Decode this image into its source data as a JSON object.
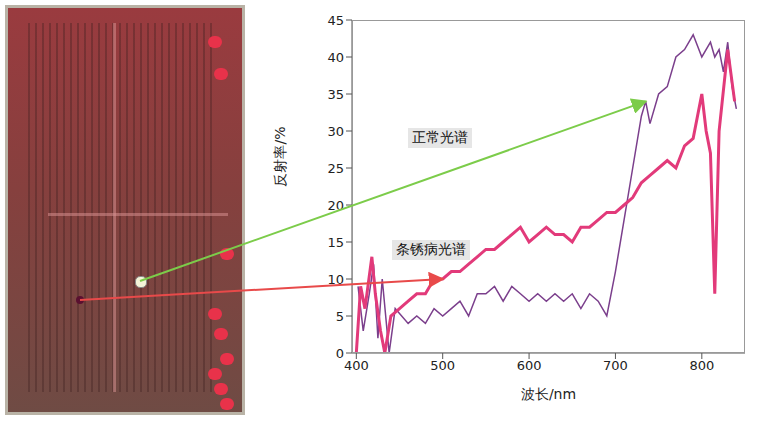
{
  "chart_data": {
    "type": "line",
    "xlabel": "波长/nm",
    "ylabel": "反射率/%",
    "xlim": [
      395,
      850
    ],
    "xticks": [
      400,
      500,
      600,
      700,
      800
    ],
    "ylim": [
      0,
      45
    ],
    "yticks": [
      0,
      5,
      10,
      15,
      20,
      25,
      30,
      35,
      40,
      45
    ],
    "grid": false,
    "series": [
      {
        "name": "正常光谱",
        "color": "#7b3f8c",
        "x": [
          402,
          408,
          415,
          420,
          425,
          430,
          438,
          445,
          460,
          470,
          480,
          490,
          500,
          510,
          520,
          530,
          540,
          550,
          560,
          570,
          580,
          590,
          600,
          610,
          620,
          630,
          640,
          650,
          660,
          670,
          680,
          690,
          700,
          710,
          720,
          730,
          735,
          740,
          750,
          760,
          770,
          780,
          790,
          800,
          810,
          815,
          820,
          825,
          830,
          835,
          840
        ],
        "values": [
          9,
          3,
          8,
          12,
          2,
          10,
          0,
          6,
          4,
          5,
          4,
          6,
          5,
          6,
          7,
          5,
          8,
          8,
          9,
          7,
          9,
          8,
          7,
          8,
          7,
          8,
          7,
          8,
          6,
          8,
          7,
          5,
          11,
          18,
          25,
          32,
          34,
          31,
          35,
          36,
          40,
          41,
          43,
          40,
          42,
          40,
          41,
          38,
          42,
          36,
          33
        ]
      },
      {
        "name": "条锈病光谱",
        "color": "#e23a7a",
        "x": [
          400,
          405,
          410,
          418,
          422,
          428,
          433,
          440,
          450,
          460,
          470,
          480,
          490,
          500,
          510,
          520,
          530,
          540,
          550,
          560,
          570,
          580,
          590,
          600,
          610,
          620,
          630,
          640,
          650,
          660,
          670,
          680,
          690,
          700,
          710,
          720,
          730,
          740,
          750,
          760,
          770,
          780,
          790,
          800,
          805,
          810,
          815,
          820,
          830,
          838
        ],
        "values": [
          0,
          9,
          6,
          13,
          8,
          3,
          0,
          5,
          6,
          7,
          8,
          8,
          10,
          10,
          11,
          11,
          12,
          13,
          14,
          14,
          15,
          16,
          17,
          15,
          16,
          17,
          16,
          16,
          15,
          17,
          17,
          18,
          19,
          19,
          20,
          21,
          23,
          24,
          25,
          26,
          25,
          28,
          29,
          35,
          30,
          27,
          8,
          30,
          41,
          34
        ]
      }
    ]
  }
}
